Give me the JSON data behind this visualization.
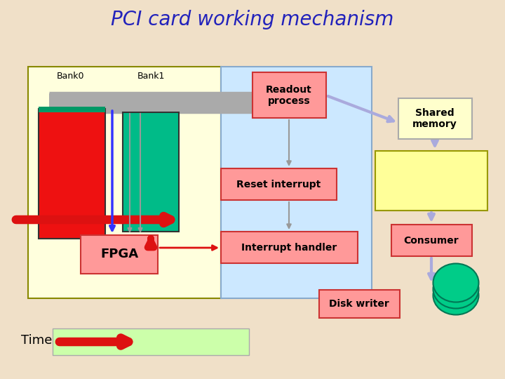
{
  "title": "PCI card working mechanism",
  "title_color": "#2222bb",
  "title_fontsize": 20,
  "bg_color": "#f0e0c8",
  "bank0_label": "Bank0",
  "bank1_label": "Bank1",
  "time_label": "Time",
  "fpga_label": "FPGA",
  "readout_label": "Readout\nprocess",
  "reset_label": "Reset interrupt",
  "interrupt_label": "Interrupt handler",
  "shared_mem_label": "Shared\nmemory",
  "consumer_label": "Consumer",
  "disk_label": "Disk writer",
  "box_fc": "#ff9999",
  "box_ec": "#cc3333",
  "shared_label_fc": "#ffffcc",
  "shared_label_ec": "#aaaaaa",
  "shared_mem_fc": "#ffff99",
  "shared_mem_ec": "#999900",
  "fpga_area_fc": "#ffffdd",
  "fpga_area_ec": "#888800",
  "pci_area_fc": "#cce8ff",
  "pci_area_ec": "#88aacc",
  "time_bar_fc": "#ccffaa",
  "disk_fc": "#00cc88",
  "disk_ec": "#007755",
  "blue_arrow": "#3333ff",
  "red_arrow": "#dd1111",
  "gray_arrow": "#999999",
  "lavender_arrow": "#aaaadd"
}
